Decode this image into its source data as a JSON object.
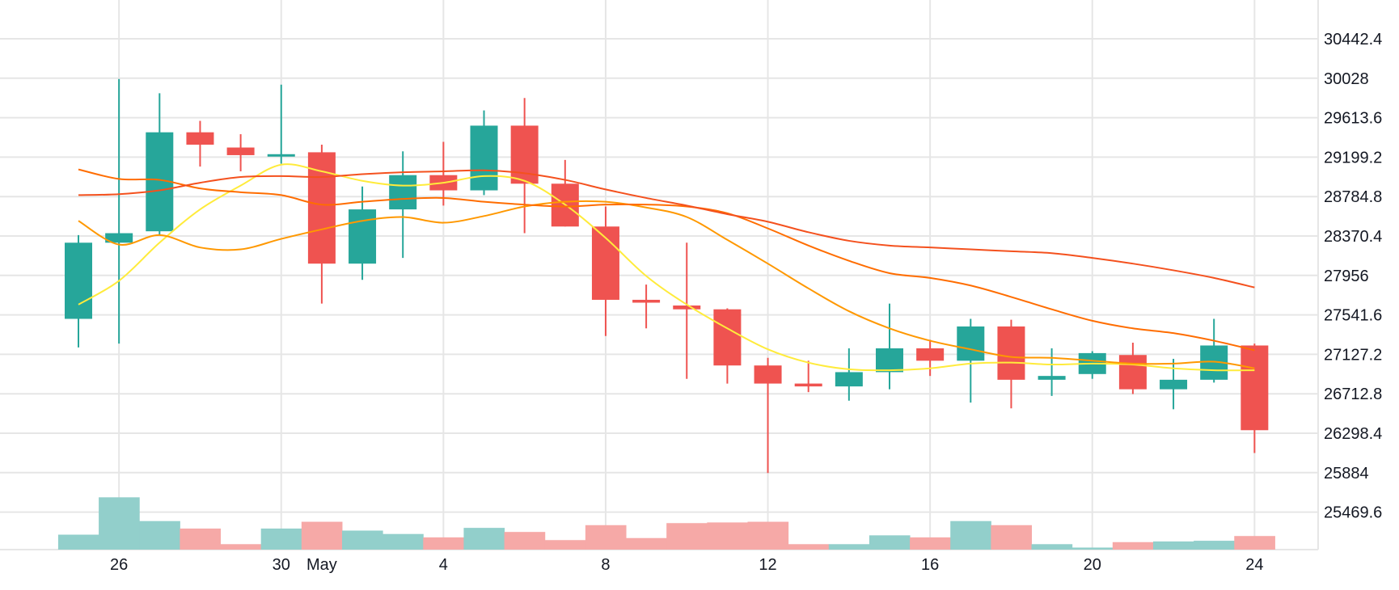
{
  "chart_data": {
    "type": "candlestick",
    "title": "",
    "grid": true,
    "price_axis": {
      "position": "right",
      "ticks": [
        "30442.4",
        "30028",
        "29613.6",
        "29199.2",
        "28784.8",
        "28370.4",
        "27956",
        "27541.6",
        "27127.2",
        "26712.8",
        "26298.4",
        "25884",
        "25469.6"
      ]
    },
    "time_axis": {
      "ticks": [
        {
          "label": "26",
          "date": "2023-04-26"
        },
        {
          "label": "30",
          "date": "2023-04-30"
        },
        {
          "label": "May",
          "date": "2023-05-01"
        },
        {
          "label": "4",
          "date": "2023-05-04"
        },
        {
          "label": "8",
          "date": "2023-05-08"
        },
        {
          "label": "12",
          "date": "2023-05-12"
        },
        {
          "label": "16",
          "date": "2023-05-16"
        },
        {
          "label": "20",
          "date": "2023-05-20"
        },
        {
          "label": "24",
          "date": "2023-05-24"
        }
      ]
    },
    "colors": {
      "up": "#26a69a",
      "down": "#ef5350",
      "volume_up": "#92cfcb",
      "volume_down": "#f6a9a7",
      "grid": "#e6e6e6",
      "ma_fast": "#ffeb3b",
      "ma_mid": "#ff9800",
      "ma_slow": "#ff6d00",
      "ma_slowest": "#f4511e"
    },
    "candles": [
      {
        "date": "2023-04-25",
        "open": 27500,
        "high": 28380,
        "low": 27200,
        "close": 28300
      },
      {
        "date": "2023-04-26",
        "open": 28300,
        "high": 30020,
        "low": 27240,
        "close": 28400
      },
      {
        "date": "2023-04-27",
        "open": 28420,
        "high": 29870,
        "low": 28380,
        "close": 29460
      },
      {
        "date": "2023-04-28",
        "open": 29460,
        "high": 29580,
        "low": 29100,
        "close": 29330
      },
      {
        "date": "2023-04-29",
        "open": 29300,
        "high": 29440,
        "low": 29050,
        "close": 29220
      },
      {
        "date": "2023-04-30",
        "open": 29220,
        "high": 29960,
        "low": 29130,
        "close": 29230
      },
      {
        "date": "2023-05-01",
        "open": 29250,
        "high": 29330,
        "low": 27660,
        "close": 28080
      },
      {
        "date": "2023-05-02",
        "open": 28080,
        "high": 28890,
        "low": 27910,
        "close": 28650
      },
      {
        "date": "2023-05-03",
        "open": 28650,
        "high": 29260,
        "low": 28140,
        "close": 29010
      },
      {
        "date": "2023-05-04",
        "open": 29010,
        "high": 29360,
        "low": 28690,
        "close": 28850
      },
      {
        "date": "2023-05-05",
        "open": 28850,
        "high": 29690,
        "low": 28800,
        "close": 29530
      },
      {
        "date": "2023-05-06",
        "open": 29530,
        "high": 29820,
        "low": 28400,
        "close": 28920
      },
      {
        "date": "2023-05-07",
        "open": 28920,
        "high": 29170,
        "low": 28470,
        "close": 28470
      },
      {
        "date": "2023-05-08",
        "open": 28470,
        "high": 28680,
        "low": 27320,
        "close": 27700
      },
      {
        "date": "2023-05-09",
        "open": 27700,
        "high": 27860,
        "low": 27400,
        "close": 27670
      },
      {
        "date": "2023-05-10",
        "open": 27640,
        "high": 28300,
        "low": 26870,
        "close": 27600
      },
      {
        "date": "2023-05-11",
        "open": 27600,
        "high": 27610,
        "low": 26820,
        "close": 27010
      },
      {
        "date": "2023-05-12",
        "open": 27010,
        "high": 27090,
        "low": 25880,
        "close": 26820
      },
      {
        "date": "2023-05-13",
        "open": 26820,
        "high": 27060,
        "low": 26730,
        "close": 26790
      },
      {
        "date": "2023-05-14",
        "open": 26790,
        "high": 27190,
        "low": 26640,
        "close": 26940
      },
      {
        "date": "2023-05-15",
        "open": 26940,
        "high": 27660,
        "low": 26760,
        "close": 27190
      },
      {
        "date": "2023-05-16",
        "open": 27190,
        "high": 27280,
        "low": 26900,
        "close": 27060
      },
      {
        "date": "2023-05-17",
        "open": 27060,
        "high": 27500,
        "low": 26620,
        "close": 27420
      },
      {
        "date": "2023-05-18",
        "open": 27420,
        "high": 27490,
        "low": 26560,
        "close": 26860
      },
      {
        "date": "2023-05-19",
        "open": 26860,
        "high": 27190,
        "low": 26690,
        "close": 26900
      },
      {
        "date": "2023-05-20",
        "open": 26920,
        "high": 27160,
        "low": 26870,
        "close": 27140
      },
      {
        "date": "2023-05-21",
        "open": 27120,
        "high": 27250,
        "low": 26710,
        "close": 26760
      },
      {
        "date": "2023-05-22",
        "open": 26760,
        "high": 27080,
        "low": 26550,
        "close": 26860
      },
      {
        "date": "2023-05-23",
        "open": 26860,
        "high": 27500,
        "low": 26830,
        "close": 27220
      },
      {
        "date": "2023-05-24",
        "open": 27220,
        "high": 27240,
        "low": 26090,
        "close": 26330
      }
    ],
    "volume_relative": [
      0.22,
      0.77,
      0.42,
      0.31,
      0.08,
      0.31,
      0.41,
      0.28,
      0.23,
      0.18,
      0.32,
      0.26,
      0.14,
      0.36,
      0.17,
      0.39,
      0.4,
      0.41,
      0.08,
      0.08,
      0.21,
      0.18,
      0.42,
      0.36,
      0.08,
      0.03,
      0.11,
      0.12,
      0.13,
      0.2
    ],
    "moving_averages": [
      {
        "color": "#ffeb3b",
        "values": [
          27650,
          27900,
          28300,
          28650,
          28900,
          29120,
          29050,
          28950,
          28900,
          28930,
          29000,
          28950,
          28700,
          28350,
          27950,
          27650,
          27400,
          27180,
          27040,
          26970,
          26960,
          26980,
          27030,
          27040,
          27020,
          27030,
          27020,
          26980,
          26960,
          26960
        ]
      },
      {
        "color": "#ff9800",
        "values": [
          28530,
          28280,
          28380,
          28250,
          28230,
          28340,
          28440,
          28530,
          28570,
          28510,
          28580,
          28680,
          28730,
          28730,
          28670,
          28570,
          28330,
          28080,
          27820,
          27580,
          27400,
          27270,
          27180,
          27100,
          27090,
          27060,
          27030,
          27030,
          27050,
          26980
        ]
      },
      {
        "color": "#ff6d00",
        "values": [
          29070,
          28970,
          28960,
          28870,
          28830,
          28800,
          28700,
          28730,
          28760,
          28770,
          28730,
          28700,
          28680,
          28700,
          28700,
          28680,
          28610,
          28450,
          28270,
          28110,
          27980,
          27930,
          27850,
          27730,
          27600,
          27480,
          27400,
          27350,
          27270,
          27170
        ]
      },
      {
        "color": "#f4511e",
        "values": [
          28800,
          28810,
          28850,
          28930,
          28990,
          29000,
          28990,
          29020,
          29040,
          29050,
          29060,
          29030,
          28960,
          28860,
          28770,
          28690,
          28600,
          28520,
          28410,
          28320,
          28270,
          28250,
          28230,
          28210,
          28190,
          28140,
          28080,
          28010,
          27930,
          27830
        ]
      }
    ]
  }
}
